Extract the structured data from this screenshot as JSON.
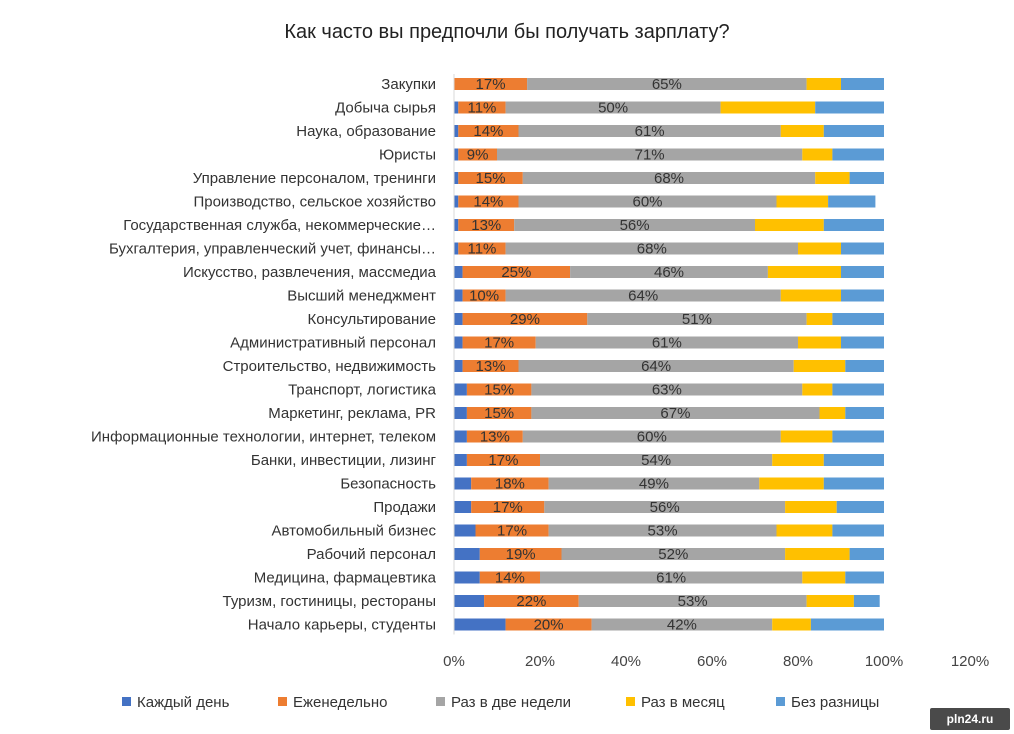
{
  "chart_data": {
    "type": "bar",
    "orientation": "horizontal",
    "stacked": true,
    "title": "Как часто вы предпочли бы получать зарплату?",
    "xlim": [
      0,
      120
    ],
    "x_ticks": [
      "0%",
      "20%",
      "40%",
      "60%",
      "80%",
      "100%",
      "120%"
    ],
    "x_tick_values": [
      0,
      20,
      40,
      60,
      80,
      100,
      120
    ],
    "grid": false,
    "legend_position": "bottom",
    "categories": [
      "Закупки",
      "Добыча сырья",
      "Наука, образование",
      "Юристы",
      "Управление персоналом, тренинги",
      "Производство, сельское хозяйство",
      "Государственная служба, некоммерческие…",
      "Бухгалтерия, управленческий учет, финансы…",
      "Искусство, развлечения, массмедиа",
      "Высший менеджмент",
      "Консультирование",
      "Административный персонал",
      "Строительство, недвижимость",
      "Транспорт, логистика",
      "Маркетинг, реклама, PR",
      "Информационные технологии, интернет, телеком",
      "Банки, инвестиции, лизинг",
      "Безопасность",
      "Продажи",
      "Автомобильный бизнес",
      "Рабочий персонал",
      "Медицина, фармацевтика",
      "Туризм, гостиницы, рестораны",
      "Начало карьеры, студенты"
    ],
    "series": [
      {
        "name": "Каждый день",
        "color": "#4472C4",
        "values": [
          0,
          1,
          1,
          1,
          1,
          1,
          1,
          1,
          2,
          2,
          2,
          2,
          2,
          3,
          3,
          3,
          3,
          4,
          4,
          5,
          6,
          6,
          7,
          12
        ]
      },
      {
        "name": "Еженедельно",
        "color": "#ED7D31",
        "values": [
          17,
          11,
          14,
          9,
          15,
          14,
          13,
          11,
          25,
          10,
          29,
          17,
          13,
          15,
          15,
          13,
          17,
          18,
          17,
          17,
          19,
          14,
          22,
          20
        ]
      },
      {
        "name": "Раз в две недели",
        "color": "#A5A5A5",
        "values": [
          65,
          50,
          61,
          71,
          68,
          60,
          56,
          68,
          46,
          64,
          51,
          61,
          64,
          63,
          67,
          60,
          54,
          49,
          56,
          53,
          52,
          61,
          53,
          42
        ]
      },
      {
        "name": "Раз в месяц",
        "color": "#FFC000",
        "values": [
          8,
          22,
          10,
          7,
          8,
          12,
          16,
          10,
          17,
          14,
          6,
          10,
          12,
          7,
          6,
          12,
          12,
          15,
          12,
          13,
          15,
          10,
          11,
          9
        ]
      },
      {
        "name": "Без разницы",
        "color": "#5B9BD5",
        "values": [
          10,
          16,
          14,
          12,
          8,
          11,
          14,
          10,
          10,
          10,
          12,
          10,
          9,
          12,
          9,
          12,
          14,
          14,
          11,
          12,
          8,
          9,
          6,
          17
        ]
      }
    ],
    "labels": {
      "Еженедельно": [
        "17%",
        "11%",
        "14%",
        "9%",
        "15%",
        "14%",
        "13%",
        "11%",
        "25%",
        "10%",
        "29%",
        "17%",
        "13%",
        "15%",
        "15%",
        "13%",
        "17%",
        "18%",
        "17%",
        "17%",
        "19%",
        "14%",
        "22%",
        "20%"
      ],
      "Раз в две недели": [
        "65%",
        "50%",
        "61%",
        "71%",
        "68%",
        "60%",
        "56%",
        "68%",
        "46%",
        "64%",
        "51%",
        "61%",
        "64%",
        "63%",
        "67%",
        "60%",
        "54%",
        "49%",
        "56%",
        "53%",
        "52%",
        "61%",
        "53%",
        "42%"
      ]
    }
  },
  "watermark": "pln24.ru"
}
